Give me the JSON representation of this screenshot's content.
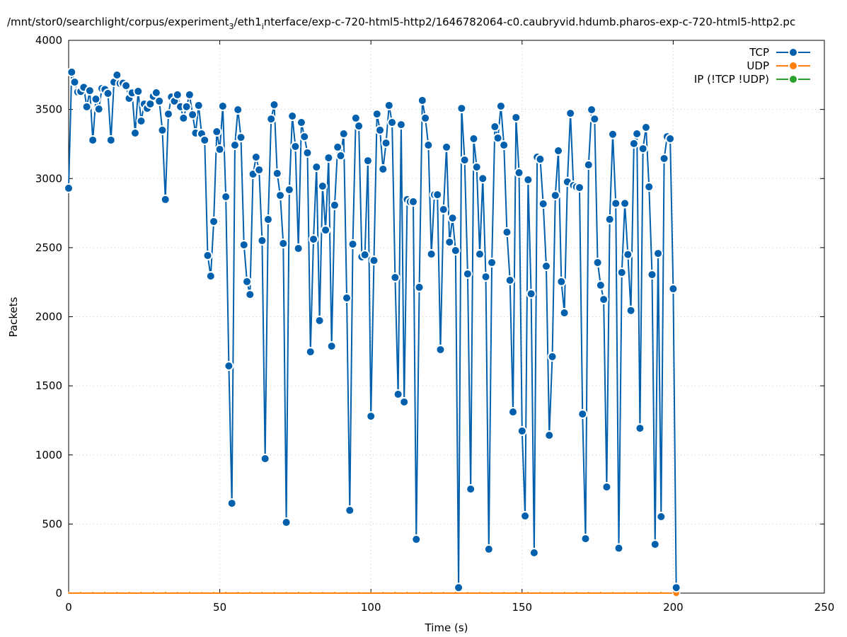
{
  "chart_data": {
    "type": "line",
    "title_parts": [
      "/mnt/stor0/searchlight/corpus/experiment",
      "3",
      "/eth1",
      "i",
      "nterface/exp-c-720-html5-http2/1646782064-c0.caubryvid.hdumb.pharos-exp-c-720-html5-http2.pc"
    ],
    "xlabel": "Time (s)",
    "ylabel": "Packets",
    "xlim": [
      0,
      250
    ],
    "ylim": [
      0,
      4000
    ],
    "xticks": [
      "0",
      "50",
      "100",
      "150",
      "200",
      "250"
    ],
    "yticks": [
      "0",
      "500",
      "1000",
      "1500",
      "2000",
      "2500",
      "3000",
      "3500",
      "4000"
    ],
    "grid": true,
    "legend_position": "top-right",
    "x_start": 0,
    "x_step": 1,
    "series": [
      {
        "name": "TCP",
        "color": "#0060ad",
        "values": [
          2930,
          3770,
          3698,
          3626,
          3630,
          3660,
          3519,
          3636,
          3278,
          3575,
          3503,
          3652,
          3645,
          3616,
          3278,
          3698,
          3749,
          3688,
          3690,
          3672,
          3580,
          3620,
          3329,
          3631,
          3416,
          3539,
          3508,
          3540,
          3595,
          3621,
          3560,
          3350,
          2848,
          3467,
          3590,
          3560,
          3606,
          3520,
          3437,
          3520,
          3606,
          3462,
          3329,
          3529,
          3324,
          3278,
          2443,
          2294,
          2689,
          3339,
          3211,
          3524,
          2868,
          1644,
          650,
          3242,
          3498,
          3298,
          2520,
          2254,
          2161,
          3032,
          3155,
          3063,
          2551,
          973,
          2704,
          3431,
          3534,
          3037,
          2878,
          2530,
          512,
          2919,
          3452,
          3232,
          2494,
          3406,
          3303,
          3186,
          1746,
          2561,
          3083,
          1972,
          2945,
          2627,
          3150,
          1787,
          2807,
          3227,
          3165,
          3324,
          2136,
          599,
          2525,
          3437,
          3380,
          2433,
          2448,
          3129,
          1280,
          2407,
          3467,
          3350,
          3068,
          3257,
          3529,
          3406,
          2284,
          1439,
          3390,
          1383,
          2848,
          2832,
          2832,
          389,
          2213,
          3565,
          3437,
          3242,
          2453,
          2883,
          2883,
          1762,
          2776,
          3227,
          2540,
          2714,
          2479,
          40,
          3508,
          3134,
          2310,
          753,
          3288,
          3083,
          2453,
          3000,
          2289,
          318,
          2392,
          3375,
          3293,
          3524,
          3242,
          2612,
          2264,
          1311,
          3442,
          3042,
          1173,
          558,
          2991,
          2166,
          292,
          3155,
          3140,
          2817,
          2366,
          1142,
          1711,
          2878,
          3201,
          2254,
          2028,
          2976,
          3472,
          2950,
          2940,
          2935,
          1296,
          394,
          3099,
          3498,
          3431,
          2392,
          2228,
          2125,
          768,
          2705,
          3320,
          2820,
          325,
          2320,
          2820,
          2450,
          2045,
          3253,
          3324,
          1193,
          3216,
          3370,
          2940,
          2305,
          353,
          2458,
          553,
          3145,
          3303,
          3288,
          2202,
          40
        ]
      },
      {
        "name": "UDP",
        "color": "#ff7f0e",
        "values": "zero"
      },
      {
        "name": "IP (!TCP  !UDP)",
        "color": "#2ca02c",
        "values": "zero"
      }
    ]
  }
}
